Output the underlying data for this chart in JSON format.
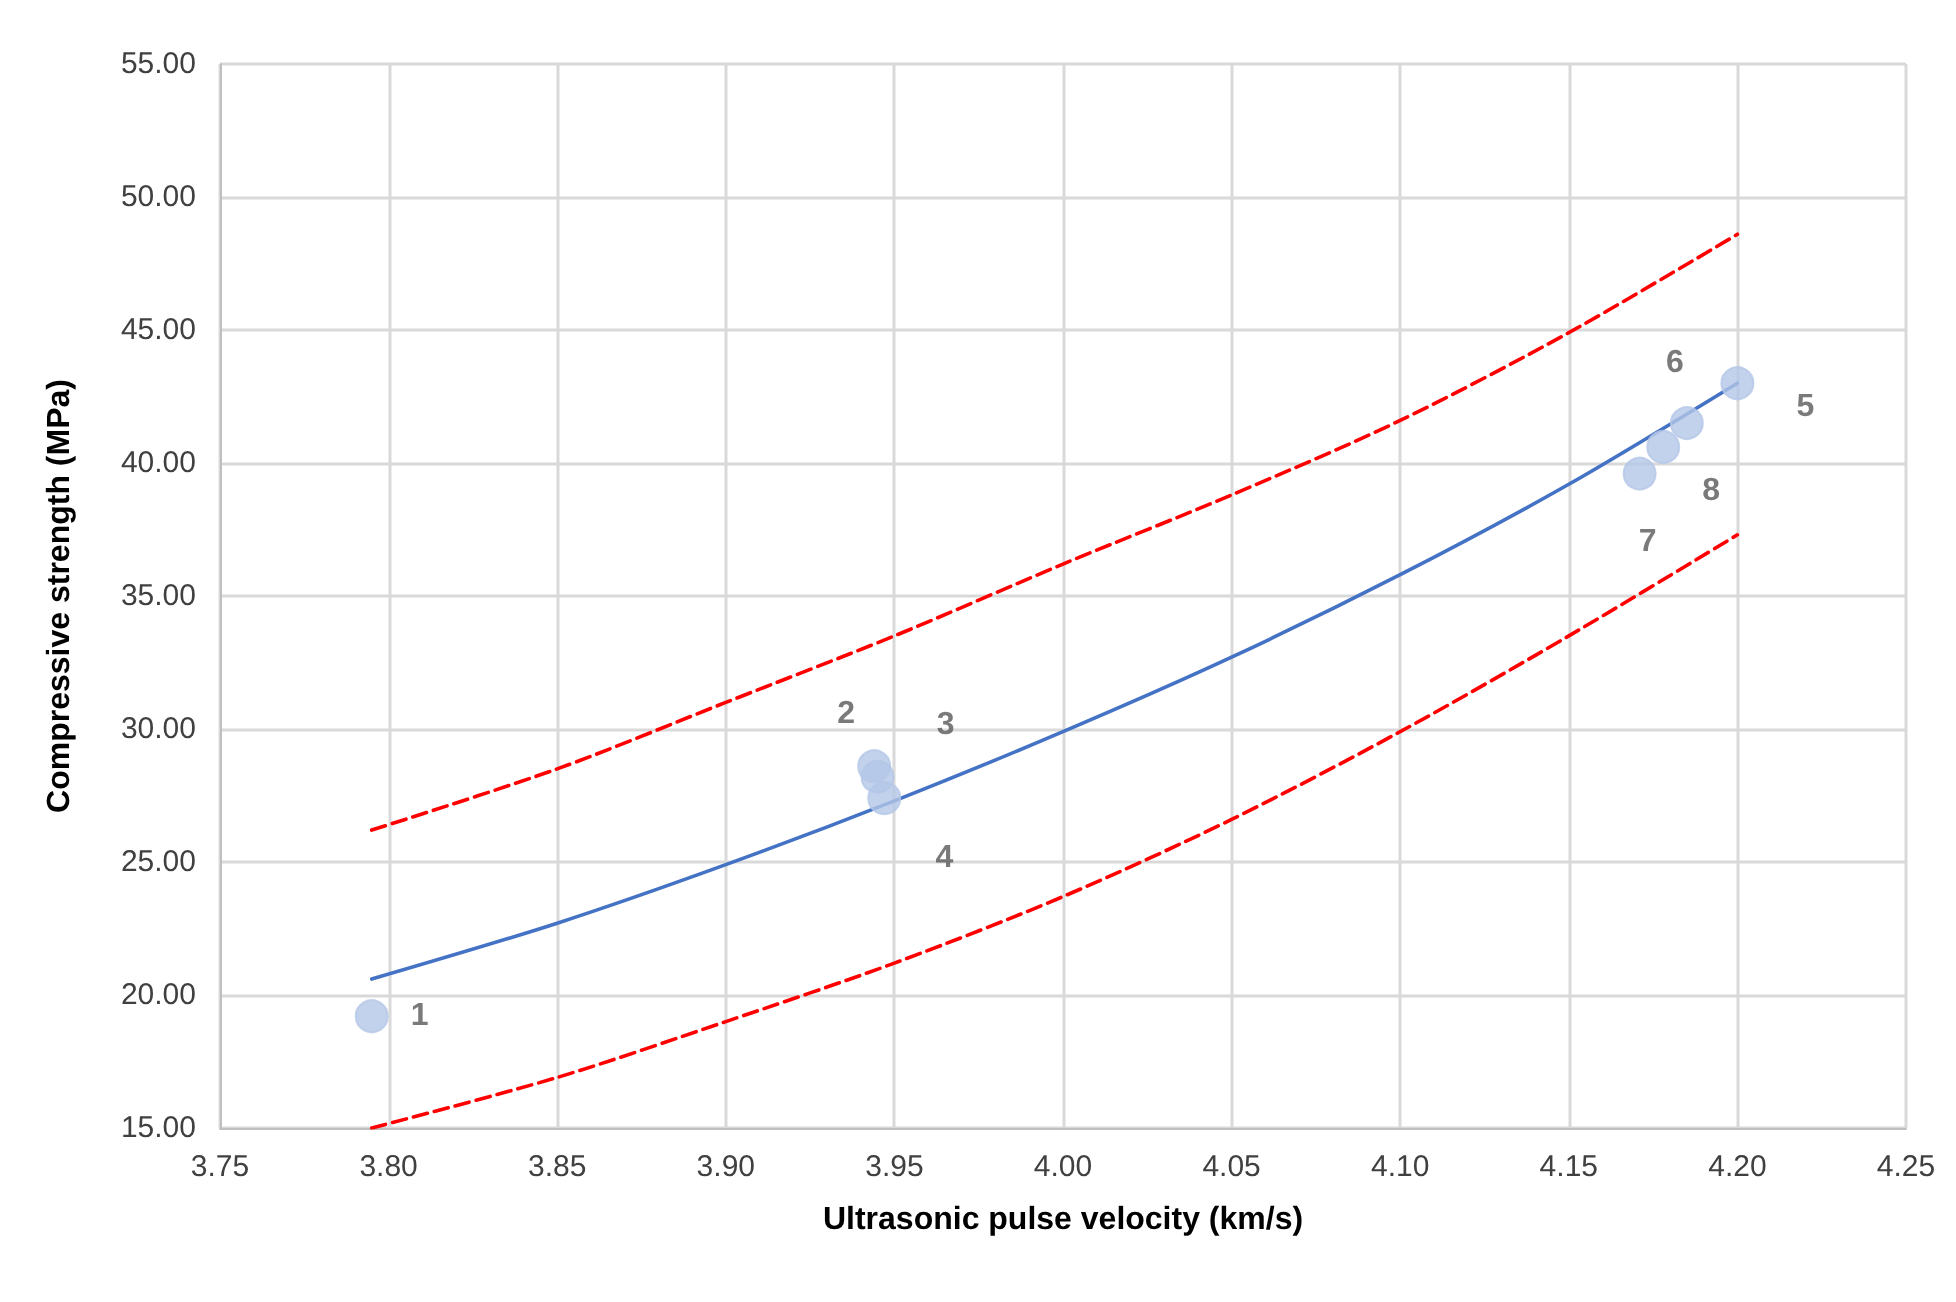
{
  "chart_data": {
    "type": "scatter",
    "xlabel": "Ultrasonic pulse velocity (km/s)",
    "ylabel": "Compressive strength (MPa)",
    "xlim": [
      3.75,
      4.25
    ],
    "xticks": [
      {
        "value": 3.75,
        "label": "3.75"
      },
      {
        "value": 3.8,
        "label": "3.80"
      },
      {
        "value": 3.85,
        "label": "3.85"
      },
      {
        "value": 3.9,
        "label": "3.90"
      },
      {
        "value": 3.95,
        "label": "3.95"
      },
      {
        "value": 4.0,
        "label": "4.00"
      },
      {
        "value": 4.05,
        "label": "4.05"
      },
      {
        "value": 4.1,
        "label": "4.10"
      },
      {
        "value": 4.15,
        "label": "4.15"
      },
      {
        "value": 4.2,
        "label": "4.20"
      },
      {
        "value": 4.25,
        "label": "4.25"
      }
    ],
    "ylim": [
      15,
      55
    ],
    "yticks": [
      {
        "value": 15,
        "label": "15.00"
      },
      {
        "value": 20,
        "label": "20.00"
      },
      {
        "value": 25,
        "label": "25.00"
      },
      {
        "value": 30,
        "label": "30.00"
      },
      {
        "value": 35,
        "label": "35.00"
      },
      {
        "value": 40,
        "label": "40.00"
      },
      {
        "value": 45,
        "label": "45.00"
      },
      {
        "value": 50,
        "label": "50.00"
      },
      {
        "value": 55,
        "label": "55.00"
      }
    ],
    "grid": true,
    "series": [
      {
        "color": "#b4c7e7",
        "marker": "circle",
        "x": [
          3.795,
          3.944,
          3.945,
          3.947,
          4.2,
          4.185,
          4.171,
          4.178
        ],
        "values": [
          19.2,
          28.6,
          28.2,
          27.4,
          43.0,
          41.5,
          39.6,
          40.6
        ]
      },
      {
        "type": "line",
        "color": "#4472c4",
        "marker": "none",
        "line_style": "solid",
        "x": [
          3.795,
          3.85,
          3.9,
          3.95,
          4.0,
          4.05,
          4.1,
          4.15,
          4.2
        ],
        "values": [
          20.6,
          22.7,
          24.9,
          27.3,
          29.9,
          32.7,
          35.8,
          39.2,
          43.0
        ]
      },
      {
        "type": "line",
        "color": "#ff0000",
        "marker": "none",
        "line_style": "dashed",
        "x": [
          3.795,
          3.85,
          3.9,
          3.95,
          4.0,
          4.05,
          4.1,
          4.15,
          4.2
        ],
        "values": [
          26.2,
          28.5,
          31.0,
          33.5,
          36.2,
          38.8,
          41.6,
          44.9,
          48.6
        ]
      },
      {
        "type": "line",
        "color": "#ff0000",
        "marker": "none",
        "line_style": "dashed",
        "x": [
          3.795,
          3.85,
          3.9,
          3.95,
          4.0,
          4.05,
          4.1,
          4.15,
          4.2
        ],
        "values": [
          15.0,
          16.9,
          19.0,
          21.2,
          23.7,
          26.6,
          29.9,
          33.5,
          37.3
        ]
      }
    ],
    "annotations": [
      {
        "text": "1",
        "x": 3.795,
        "y": 19.2
      },
      {
        "text": "2",
        "x": 3.944,
        "y": 28.6
      },
      {
        "text": "3",
        "x": 3.945,
        "y": 28.2
      },
      {
        "text": "4",
        "x": 3.947,
        "y": 27.4
      },
      {
        "text": "5",
        "x": 4.2,
        "y": 43.0
      },
      {
        "text": "6",
        "x": 4.185,
        "y": 41.5
      },
      {
        "text": "7",
        "x": 4.171,
        "y": 39.6
      },
      {
        "text": "8",
        "x": 4.178,
        "y": 40.6
      }
    ]
  }
}
